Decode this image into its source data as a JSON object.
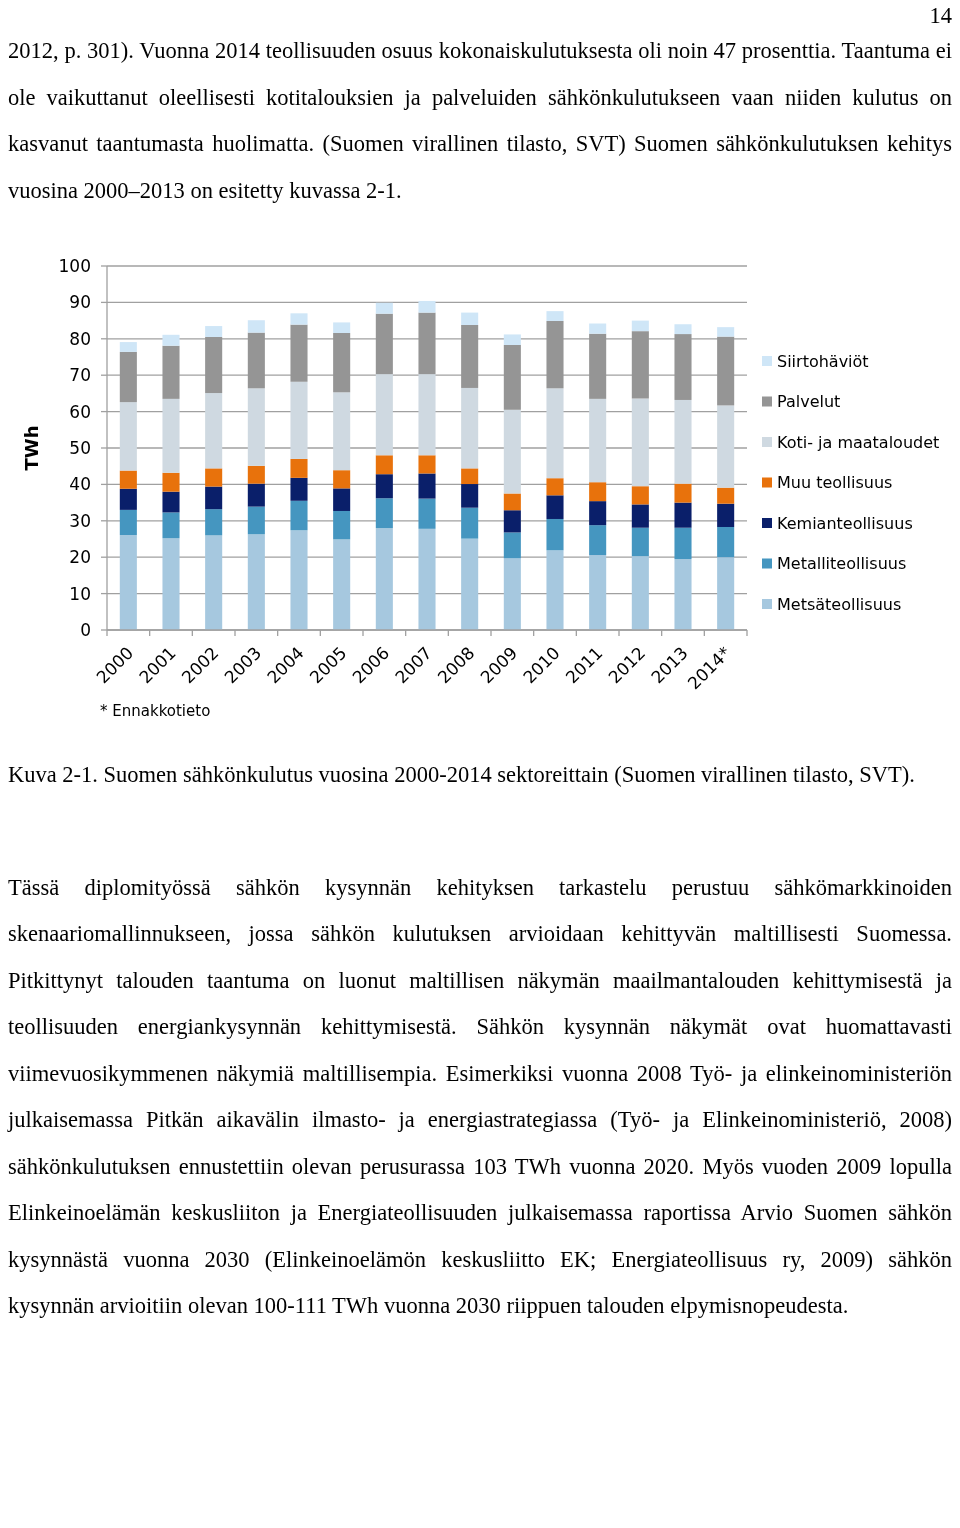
{
  "chart_data": {
    "type": "bar",
    "stacked": true,
    "ylabel": "TWh",
    "categories": [
      "2000",
      "2001",
      "2002",
      "2003",
      "2004",
      "2005",
      "2006",
      "2007",
      "2008",
      "2009",
      "2010",
      "2011",
      "2012",
      "2013",
      "2014*"
    ],
    "series": [
      {
        "name": "Metsäteollisuus",
        "color": "#a6c8df",
        "values": [
          26.1,
          25.2,
          26.0,
          26.3,
          27.4,
          24.9,
          28.0,
          27.8,
          25.1,
          19.7,
          21.9,
          20.6,
          20.3,
          19.5,
          20.0
        ]
      },
      {
        "name": "Metalliteollisuus",
        "color": "#4596c0",
        "values": [
          6.9,
          7.1,
          7.2,
          7.6,
          8.1,
          7.8,
          8.2,
          8.3,
          8.5,
          7.1,
          8.6,
          8.2,
          7.8,
          8.6,
          8.3
        ]
      },
      {
        "name": "Kemianteollisuus",
        "color": "#0a1f6a",
        "values": [
          5.8,
          5.7,
          6.2,
          6.3,
          6.3,
          6.2,
          6.6,
          6.9,
          6.5,
          6.1,
          6.5,
          6.6,
          6.4,
          6.9,
          6.4
        ]
      },
      {
        "name": "Muu teollisuus",
        "color": "#e8720c",
        "values": [
          5.0,
          5.2,
          5.0,
          4.9,
          5.2,
          5.0,
          5.2,
          5.0,
          4.3,
          4.6,
          4.7,
          5.2,
          5.0,
          5.2,
          4.4
        ]
      },
      {
        "name": "Koti- ja maataloudet",
        "color": "#cfd9e1",
        "values": [
          18.8,
          20.3,
          20.7,
          21.3,
          21.2,
          21.4,
          22.3,
          22.3,
          22.1,
          23.0,
          24.7,
          22.9,
          24.1,
          23.0,
          22.6
        ]
      },
      {
        "name": "Palvelut",
        "color": "#959595",
        "values": [
          13.8,
          14.6,
          15.4,
          15.3,
          15.7,
          16.3,
          16.6,
          16.9,
          17.3,
          17.8,
          18.5,
          17.9,
          18.5,
          18.1,
          18.9
        ]
      },
      {
        "name": "Siirtohäviöt",
        "color": "#cfe6f7",
        "values": [
          2.7,
          3.0,
          3.0,
          3.4,
          3.1,
          2.9,
          3.0,
          3.2,
          3.4,
          2.9,
          2.7,
          2.8,
          2.9,
          2.7,
          2.6
        ]
      }
    ],
    "ylim": [
      0,
      100
    ],
    "yticks": [
      0,
      10,
      20,
      30,
      40,
      50,
      60,
      70,
      80,
      90,
      100
    ],
    "grid": "y",
    "legend": "right",
    "annotations": [
      "14",
      "2012, p. 301). Vuonna 2014 teollisuuden osuus kokonaiskulutuksesta oli noin 47 prosenttia. Taantuma ei ole vaikuttanut oleellisesti kotitalouksien ja palveluiden sähkönkulutukseen vaan niiden kulutus on kasvanut taantumasta huolimatta. (Suomen virallinen tilasto, SVT) Suomen sähkönkulutuksen kehitys vuosina 2000–2013 on esitetty kuvassa 2-1.",
      "* Ennakkotieto",
      "Kuva 2-1. Suomen sähkönkulutus vuosina 2000-2014 sektoreittain (Suomen virallinen tilasto, SVT).",
      "Tässä diplomityössä sähkön kysynnän kehityksen tarkastelu perustuu sähkömarkkinoiden skenaariomallinnukseen, jossa sähkön kulutuksen arvioidaan kehittyvän maltillisesti Suomessa. Pitkittynyt talouden taantuma on luonut maltillisen näkymän maailmantalouden kehittymisestä ja teollisuuden energiankysynnän kehittymisestä. Sähkön kysynnän näkymät ovat huomattavasti viimevuosikymmenen näkymiä maltillisempia. Esimerkiksi vuonna 2008 Työ- ja elinkeinoministeriön julkaisemassa Pitkän aikavälin ilmasto- ja energiastrategiassa (Työ- ja Elinkeinoministeriö, 2008) sähkönkulutuksen ennustettiin olevan perusurassa 103 TWh vuonna 2020. Myös vuoden 2009 lopulla Elinkeinoelämän keskusliiton ja Energiateollisuuden julkaisemassa raportissa Arvio Suomen sähkön kysynnästä vuonna 2030 (Elinkeinoelämön keskusliitto EK; Energiateollisuus ry, 2009) sähkön kysynnän arvioitiin olevan 100-111 TWh vuonna 2030 riippuen talouden elpymisnopeudesta."
    ]
  }
}
